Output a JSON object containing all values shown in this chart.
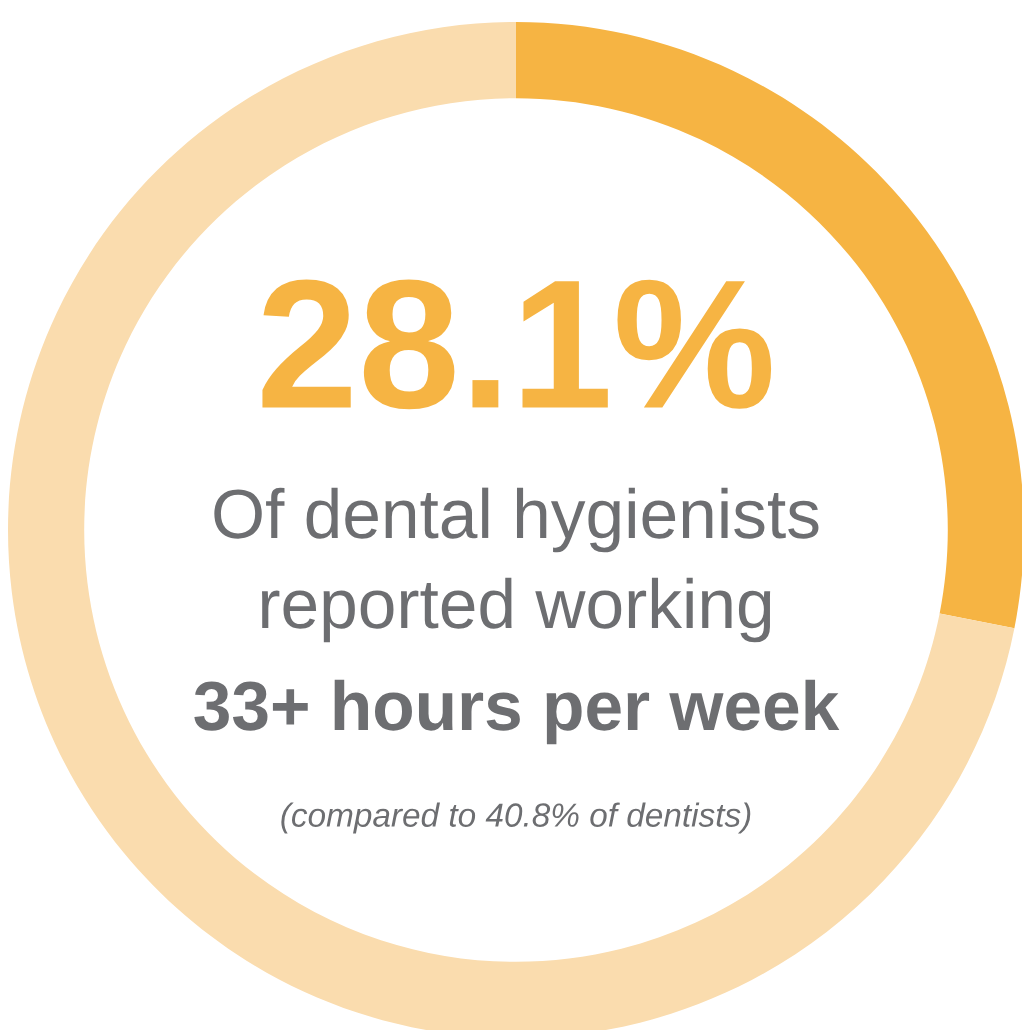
{
  "chart_data": {
    "type": "donut",
    "categories": [
      null,
      null
    ],
    "values": [
      28.1,
      71.9
    ],
    "colors": [
      "#f6b443",
      "#fadcae"
    ],
    "value_labels": [
      "28.1%",
      null
    ],
    "annotations": [
      "Of dental hygienists",
      "reported working",
      "33+ hours per week",
      "(compared to 40.8% of dentists)"
    ]
  }
}
